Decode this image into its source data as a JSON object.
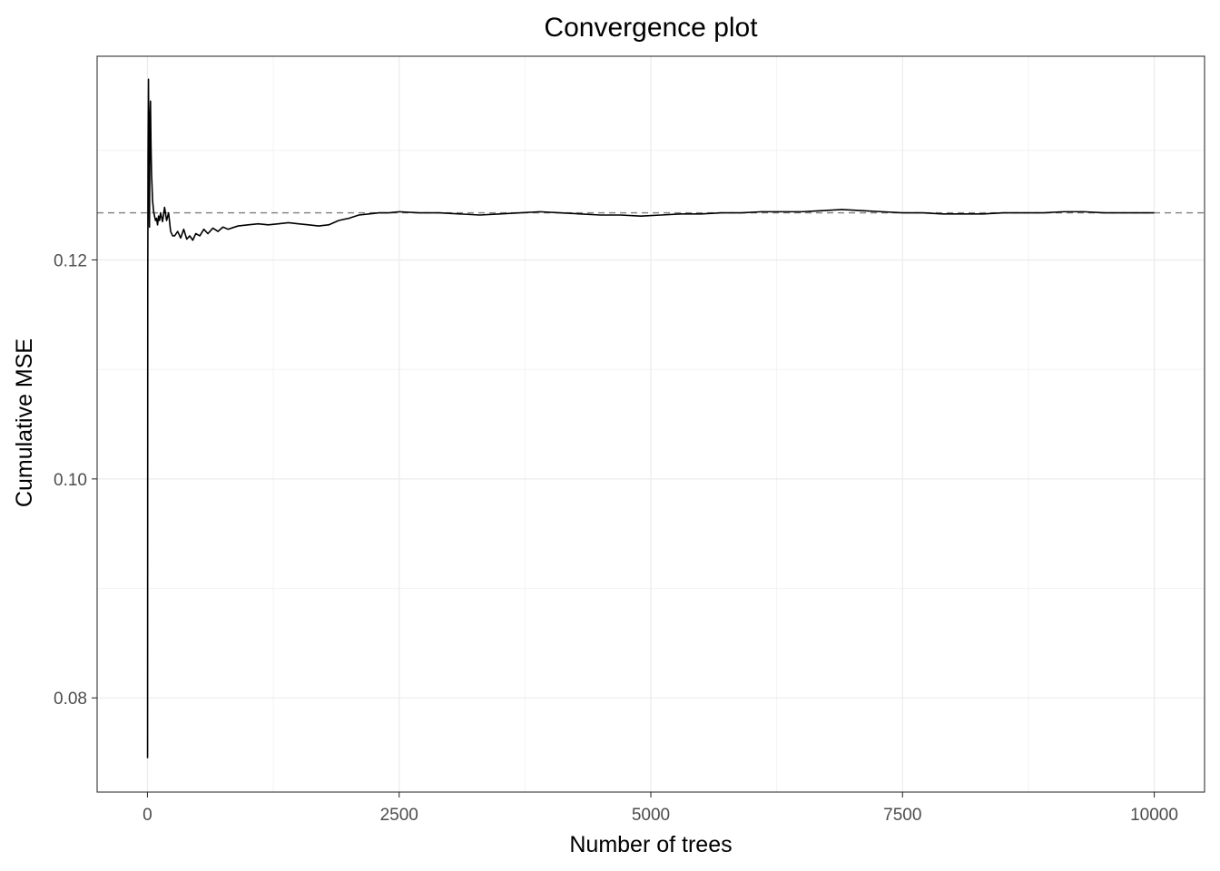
{
  "chart_data": {
    "type": "line",
    "title": "Convergence plot",
    "xlabel": "Number of trees",
    "ylabel": "Cumulative MSE",
    "xlim": [
      -500,
      10500
    ],
    "ylim": [
      0.0714,
      0.1386
    ],
    "x_ticks": [
      0,
      2500,
      5000,
      7500,
      10000
    ],
    "x_tick_labels": [
      "0",
      "2500",
      "5000",
      "7500",
      "10000"
    ],
    "y_ticks": [
      0.08,
      0.1,
      0.12
    ],
    "y_tick_labels": [
      "0.08",
      "0.10",
      "0.12"
    ],
    "grid": true,
    "reference_line": {
      "y": 0.1243,
      "style": "dashed",
      "color": "#7f7f7f"
    },
    "series": [
      {
        "color": "#000000",
        "x": [
          1,
          3,
          6,
          10,
          15,
          20,
          25,
          30,
          35,
          40,
          45,
          50,
          55,
          60,
          70,
          80,
          90,
          100,
          110,
          120,
          130,
          150,
          170,
          190,
          210,
          230,
          250,
          270,
          300,
          330,
          360,
          390,
          420,
          450,
          480,
          520,
          560,
          600,
          650,
          700,
          750,
          800,
          900,
          1000,
          1100,
          1200,
          1300,
          1400,
          1500,
          1600,
          1700,
          1800,
          1900,
          2000,
          2100,
          2200,
          2300,
          2400,
          2500,
          2700,
          2900,
          3100,
          3300,
          3500,
          3700,
          3900,
          4100,
          4300,
          4500,
          4700,
          4900,
          5100,
          5300,
          5500,
          5700,
          5900,
          6100,
          6300,
          6500,
          6700,
          6900,
          7100,
          7300,
          7500,
          7700,
          7900,
          8100,
          8300,
          8500,
          8700,
          8900,
          9100,
          9300,
          9500,
          9700,
          9900,
          10000
        ],
        "y": [
          0.0745,
          0.1175,
          0.1295,
          0.1365,
          0.1285,
          0.123,
          0.133,
          0.1345,
          0.1305,
          0.128,
          0.1268,
          0.1255,
          0.125,
          0.1245,
          0.124,
          0.1236,
          0.1238,
          0.1232,
          0.124,
          0.1236,
          0.1243,
          0.1235,
          0.1248,
          0.1236,
          0.1243,
          0.1226,
          0.1222,
          0.1222,
          0.1226,
          0.122,
          0.1228,
          0.1219,
          0.1222,
          0.1218,
          0.1224,
          0.1222,
          0.1228,
          0.1224,
          0.1229,
          0.1226,
          0.123,
          0.1228,
          0.1231,
          0.1232,
          0.1233,
          0.1232,
          0.1233,
          0.1234,
          0.1233,
          0.1232,
          0.1231,
          0.1232,
          0.1236,
          0.1238,
          0.1241,
          0.1242,
          0.1243,
          0.1243,
          0.1244,
          0.1243,
          0.1243,
          0.1242,
          0.1241,
          0.1242,
          0.1243,
          0.1244,
          0.1243,
          0.1242,
          0.1241,
          0.1241,
          0.124,
          0.1241,
          0.1242,
          0.1242,
          0.1243,
          0.1243,
          0.1244,
          0.1244,
          0.1244,
          0.1245,
          0.1246,
          0.1245,
          0.1244,
          0.1243,
          0.1243,
          0.1242,
          0.1242,
          0.1242,
          0.1243,
          0.1243,
          0.1243,
          0.1244,
          0.1244,
          0.1243,
          0.1243,
          0.1243,
          0.1243
        ]
      }
    ]
  }
}
